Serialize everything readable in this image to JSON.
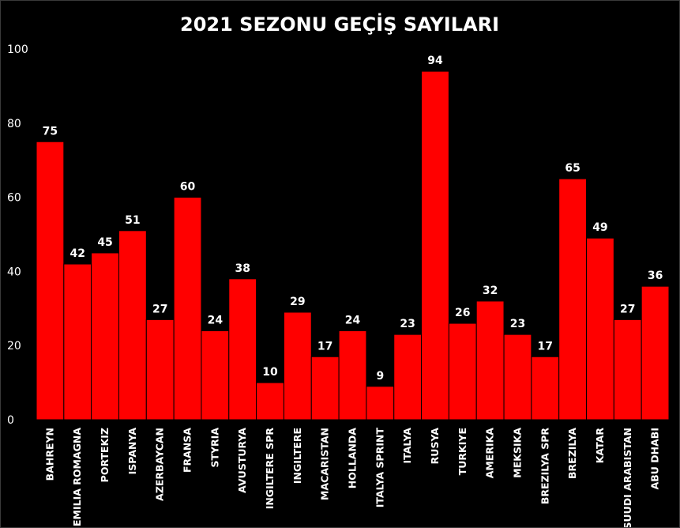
{
  "chart_data": {
    "type": "bar",
    "title": "2021 SEZONU GEÇİŞ SAYILARI",
    "xlabel": "",
    "ylabel": "",
    "ylim": [
      0,
      100
    ],
    "yticks": [
      0,
      20,
      40,
      60,
      80,
      100
    ],
    "grid": false,
    "legend": "none",
    "bar_color": "#ff0000",
    "bar_edge_color": "#000000",
    "background_color": "#000000",
    "text_color": "#ffffff",
    "categories": [
      "BAHREYN",
      "EMILIA ROMAGNA",
      "PORTEKIZ",
      "ISPANYA",
      "AZERBAYCAN",
      "FRANSA",
      "STYRIA",
      "AVUSTURYA",
      "INGILTERE SPR",
      "INGILTERE",
      "MACARISTAN",
      "HOLLANDA",
      "ITALYA SPRINT",
      "ITALYA",
      "RUSYA",
      "TURKIYE",
      "AMERIKA",
      "MEKSIKA",
      "BREZILYA SPR",
      "BREZILYA",
      "KATAR",
      "SUUDI ARABISTAN",
      "ABU DHABI"
    ],
    "values": [
      75,
      42,
      45,
      51,
      27,
      60,
      24,
      38,
      10,
      29,
      17,
      24,
      9,
      23,
      94,
      26,
      32,
      23,
      17,
      65,
      49,
      27,
      36
    ]
  }
}
